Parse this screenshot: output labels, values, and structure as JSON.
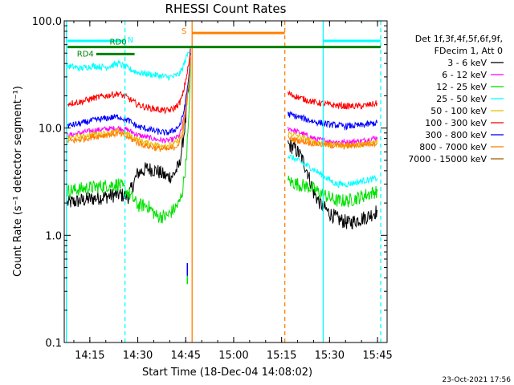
{
  "chart_data": {
    "type": "line",
    "title": "RHESSI Count Rates",
    "xlabel": "Start Time (18-Dec-04 14:08:02)",
    "ylabel": "Count Rate (s⁻¹ detector segment⁻¹)",
    "y_scale": "log",
    "ylim": [
      0.1,
      100.0
    ],
    "xlim": [
      "14:07",
      "15:48"
    ],
    "x_ticks": [
      "14:15",
      "14:30",
      "14:45",
      "15:00",
      "15:15",
      "15:30",
      "15:45"
    ],
    "y_ticks": [
      "0.1",
      "1.0",
      "10.0",
      "100.0"
    ],
    "legend_title": [
      "Det 1f,3f,4f,5f,6f,9f,",
      "FDecim 1, Att 0"
    ],
    "legend_position": "right",
    "series": [
      {
        "name": "3 - 6 keV",
        "color": "#000000",
        "segments": [
          {
            "x": [
              "14:08",
              "14:12",
              "14:16",
              "14:20",
              "14:24",
              "14:27",
              "14:30",
              "14:33",
              "14:36",
              "14:39",
              "14:41",
              "14:43",
              "14:44",
              "14:45",
              "14:46",
              "14:46:30"
            ],
            "y": [
              2.0,
              2.1,
              2.2,
              2.3,
              2.4,
              2.3,
              3.8,
              4.2,
              4.0,
              3.5,
              3.6,
              4.5,
              7.0,
              12.0,
              25.0,
              45.0
            ]
          },
          {
            "x": [
              "15:17",
              "15:19",
              "15:21",
              "15:23",
              "15:25",
              "15:27",
              "15:30",
              "15:33",
              "15:36",
              "15:39",
              "15:42",
              "15:45"
            ],
            "y": [
              7.0,
              6.5,
              5.5,
              4.0,
              2.5,
              2.0,
              1.6,
              1.4,
              1.3,
              1.4,
              1.5,
              1.7
            ]
          }
        ]
      },
      {
        "name": "6 - 12 keV",
        "color": "#ff00ff",
        "segments": [
          {
            "x": [
              "14:08",
              "14:12",
              "14:16",
              "14:20",
              "14:24",
              "14:27",
              "14:30",
              "14:33",
              "14:36",
              "14:39",
              "14:41",
              "14:43",
              "14:44",
              "14:45",
              "14:46",
              "14:46:30"
            ],
            "y": [
              8.5,
              9.0,
              9.5,
              9.8,
              10.0,
              9.6,
              8.6,
              8.2,
              7.8,
              7.6,
              7.8,
              8.5,
              10.5,
              16.0,
              30.0,
              55.0
            ]
          },
          {
            "x": [
              "15:17",
              "15:21",
              "15:25",
              "15:30",
              "15:35",
              "15:40",
              "15:45"
            ],
            "y": [
              10.0,
              9.0,
              8.0,
              7.5,
              7.4,
              7.6,
              8.2
            ]
          }
        ]
      },
      {
        "name": "12 - 25 keV",
        "color": "#00e000",
        "segments": [
          {
            "x": [
              "14:08",
              "14:12",
              "14:16",
              "14:20",
              "14:24",
              "14:27",
              "14:30",
              "14:33",
              "14:36",
              "14:39",
              "14:41",
              "14:43",
              "14:44",
              "14:45",
              "14:46",
              "14:46:30"
            ],
            "y": [
              2.6,
              2.7,
              2.8,
              2.9,
              3.0,
              2.5,
              1.9,
              1.9,
              1.5,
              1.5,
              1.7,
              2.0,
              2.6,
              4.5,
              12.0,
              40.0
            ]
          },
          {
            "x": [
              "15:17",
              "15:20",
              "15:24",
              "15:28",
              "15:32",
              "15:36",
              "15:40",
              "15:45"
            ],
            "y": [
              3.2,
              3.0,
              2.8,
              2.4,
              2.1,
              2.1,
              2.3,
              2.6
            ]
          }
        ]
      },
      {
        "name": "25 - 50 keV",
        "color": "#00ffff",
        "segments": [
          {
            "x": [
              "14:08",
              "14:12",
              "14:16",
              "14:20",
              "14:24",
              "14:27",
              "14:30",
              "14:33",
              "14:36",
              "14:39",
              "14:41",
              "14:43",
              "14:44",
              "14:45",
              "14:46",
              "14:46:30"
            ],
            "y": [
              38.0,
              36.0,
              38.0,
              37.0,
              40.0,
              36.0,
              33.0,
              32.0,
              31.0,
              30.0,
              30.0,
              32.0,
              36.0,
              44.0,
              52.0,
              58.0
            ]
          },
          {
            "x": [
              "15:17",
              "15:20",
              "15:24",
              "15:28",
              "15:32",
              "15:36",
              "15:40",
              "15:45"
            ],
            "y": [
              5.5,
              5.0,
              4.3,
              3.6,
              3.0,
              3.0,
              3.2,
              3.4
            ]
          }
        ]
      },
      {
        "name": "50 - 100 keV",
        "color": "#e6c000",
        "segments": [
          {
            "x": [
              "14:08",
              "14:12",
              "14:16",
              "14:20",
              "14:24",
              "14:27",
              "14:30",
              "14:33",
              "14:36",
              "14:39",
              "14:41",
              "14:43",
              "14:44",
              "14:45",
              "14:46",
              "14:46:30"
            ],
            "y": [
              8.0,
              8.3,
              8.8,
              9.0,
              9.3,
              8.8,
              7.8,
              7.3,
              7.0,
              6.9,
              7.0,
              7.8,
              9.5,
              15.0,
              28.0,
              50.0
            ]
          },
          {
            "x": [
              "15:17",
              "15:21",
              "15:25",
              "15:30",
              "15:35",
              "15:40",
              "15:45"
            ],
            "y": [
              9.0,
              8.3,
              7.5,
              7.0,
              6.9,
              7.0,
              7.5
            ]
          }
        ]
      },
      {
        "name": "100 - 300 keV",
        "color": "#ff0000",
        "segments": [
          {
            "x": [
              "14:08",
              "14:12",
              "14:16",
              "14:20",
              "14:24",
              "14:27",
              "14:30",
              "14:33",
              "14:36",
              "14:39",
              "14:41",
              "14:43",
              "14:44",
              "14:45",
              "14:46",
              "14:46:30"
            ],
            "y": [
              17.0,
              17.5,
              19.0,
              20.0,
              21.0,
              19.0,
              16.5,
              15.5,
              15.0,
              14.5,
              15.0,
              17.0,
              20.0,
              28.0,
              40.0,
              55.0
            ]
          },
          {
            "x": [
              "15:17",
              "15:21",
              "15:25",
              "15:30",
              "15:35",
              "15:40",
              "15:45"
            ],
            "y": [
              21.0,
              19.0,
              17.5,
              16.5,
              16.0,
              16.0,
              17.0
            ]
          }
        ]
      },
      {
        "name": "300 - 800 keV",
        "color": "#0000ff",
        "segments": [
          {
            "x": [
              "14:08",
              "14:12",
              "14:16",
              "14:20",
              "14:24",
              "14:27",
              "14:30",
              "14:33",
              "14:36",
              "14:39",
              "14:41",
              "14:43",
              "14:44",
              "14:45",
              "14:46",
              "14:46:30"
            ],
            "y": [
              10.5,
              11.0,
              11.8,
              12.3,
              12.8,
              11.8,
              10.3,
              9.8,
              9.3,
              9.0,
              9.4,
              10.5,
              12.5,
              18.0,
              30.0,
              50.0
            ]
          },
          {
            "x": [
              "15:17",
              "15:21",
              "15:25",
              "15:30",
              "15:35",
              "15:40",
              "15:45"
            ],
            "y": [
              13.5,
              12.5,
              11.5,
              10.8,
              10.4,
              10.6,
              11.2
            ]
          }
        ]
      },
      {
        "name": "800 - 7000 keV",
        "color": "#ff8000",
        "segments": [
          {
            "x": [
              "14:08",
              "14:12",
              "14:16",
              "14:20",
              "14:24",
              "14:27",
              "14:30",
              "14:33",
              "14:36",
              "14:39",
              "14:41",
              "14:43",
              "14:44",
              "14:45",
              "14:46",
              "14:46:30"
            ],
            "y": [
              7.5,
              7.8,
              8.3,
              8.6,
              8.9,
              8.2,
              7.3,
              6.8,
              6.5,
              6.3,
              6.5,
              7.2,
              8.8,
              14.0,
              26.0,
              48.0
            ]
          },
          {
            "x": [
              "15:17",
              "15:21",
              "15:25",
              "15:30",
              "15:35",
              "15:40",
              "15:45"
            ],
            "y": [
              8.0,
              7.6,
              7.2,
              6.9,
              6.8,
              7.0,
              7.3
            ]
          }
        ]
      },
      {
        "name": "7000 - 15000 keV",
        "color": "#a06000",
        "segments": []
      }
    ],
    "annotations": {
      "state_bars": [
        {
          "label": "N",
          "color": "#00ffff",
          "x": [
            "14:08",
            "14:26"
          ],
          "y": 65.0
        },
        {
          "label": "",
          "color": "#00ffff",
          "x": [
            "15:28",
            "15:46"
          ],
          "y": 65.0
        },
        {
          "label": "RD0",
          "color": "#008000",
          "x": [
            "14:08",
            "14:29"
          ],
          "y": 57.0
        },
        {
          "label": "",
          "color": "#008000",
          "x": [
            "14:29",
            "15:46"
          ],
          "y": 57.0
        },
        {
          "label": "RD4",
          "color": "#008000",
          "x": [
            "14:17",
            "14:29"
          ],
          "y": 49.0
        },
        {
          "label": "S",
          "color": "#ff8000",
          "x": [
            "14:47",
            "15:16"
          ],
          "y": 77.0
        }
      ],
      "vlines": [
        {
          "x": "14:07:40",
          "color": "#00ffff",
          "style": "solid"
        },
        {
          "x": "14:26",
          "color": "#00ffff",
          "style": "dashed"
        },
        {
          "x": "14:47",
          "color": "#ff8000",
          "style": "solid"
        },
        {
          "x": "15:16",
          "color": "#ff8000",
          "style": "dashed"
        },
        {
          "x": "15:28",
          "color": "#00ffff",
          "style": "solid"
        },
        {
          "x": "15:46",
          "color": "#00ffff",
          "style": "dashed"
        }
      ],
      "spike_marks": [
        {
          "x": "14:45:30",
          "y_low": 0.4,
          "y_high": 0.55,
          "color": "#0000ff"
        },
        {
          "x": "14:45:30",
          "y_low": 0.35,
          "y_high": 0.42,
          "color": "#00e000"
        }
      ]
    },
    "timestamp": "23-Oct-2021 17:56"
  }
}
